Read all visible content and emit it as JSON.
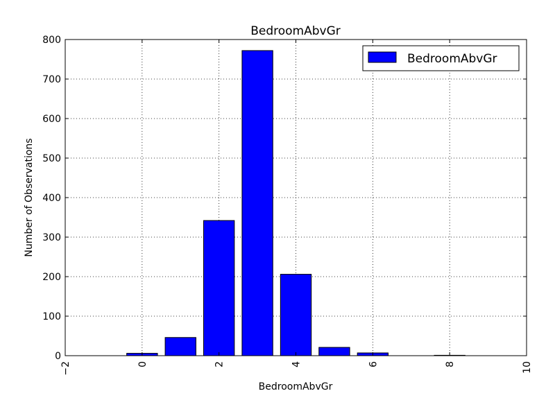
{
  "chart_data": {
    "type": "bar",
    "title": "BedroomAbvGr",
    "xlabel": "BedroomAbvGr",
    "ylabel": "Number of Observations",
    "x": [
      0,
      1,
      2,
      3,
      4,
      5,
      6,
      8
    ],
    "values": [
      6,
      46,
      342,
      772,
      206,
      21,
      7,
      1
    ],
    "xlim": [
      -2,
      10
    ],
    "ylim": [
      0,
      800
    ],
    "xticks": [
      -2,
      0,
      2,
      4,
      6,
      8,
      10
    ],
    "yticks": [
      0,
      100,
      200,
      300,
      400,
      500,
      600,
      700,
      800
    ],
    "xtick_labels": [
      "−2",
      "0",
      "2",
      "4",
      "6",
      "8",
      "10"
    ],
    "ytick_labels": [
      "0",
      "100",
      "200",
      "300",
      "400",
      "500",
      "600",
      "700",
      "800"
    ],
    "grid": true,
    "legend": {
      "placement": "top-right",
      "entries": [
        "BedroomAbvGr"
      ]
    },
    "colors": {
      "bar": "#0000ff",
      "edge": "#000000"
    }
  }
}
